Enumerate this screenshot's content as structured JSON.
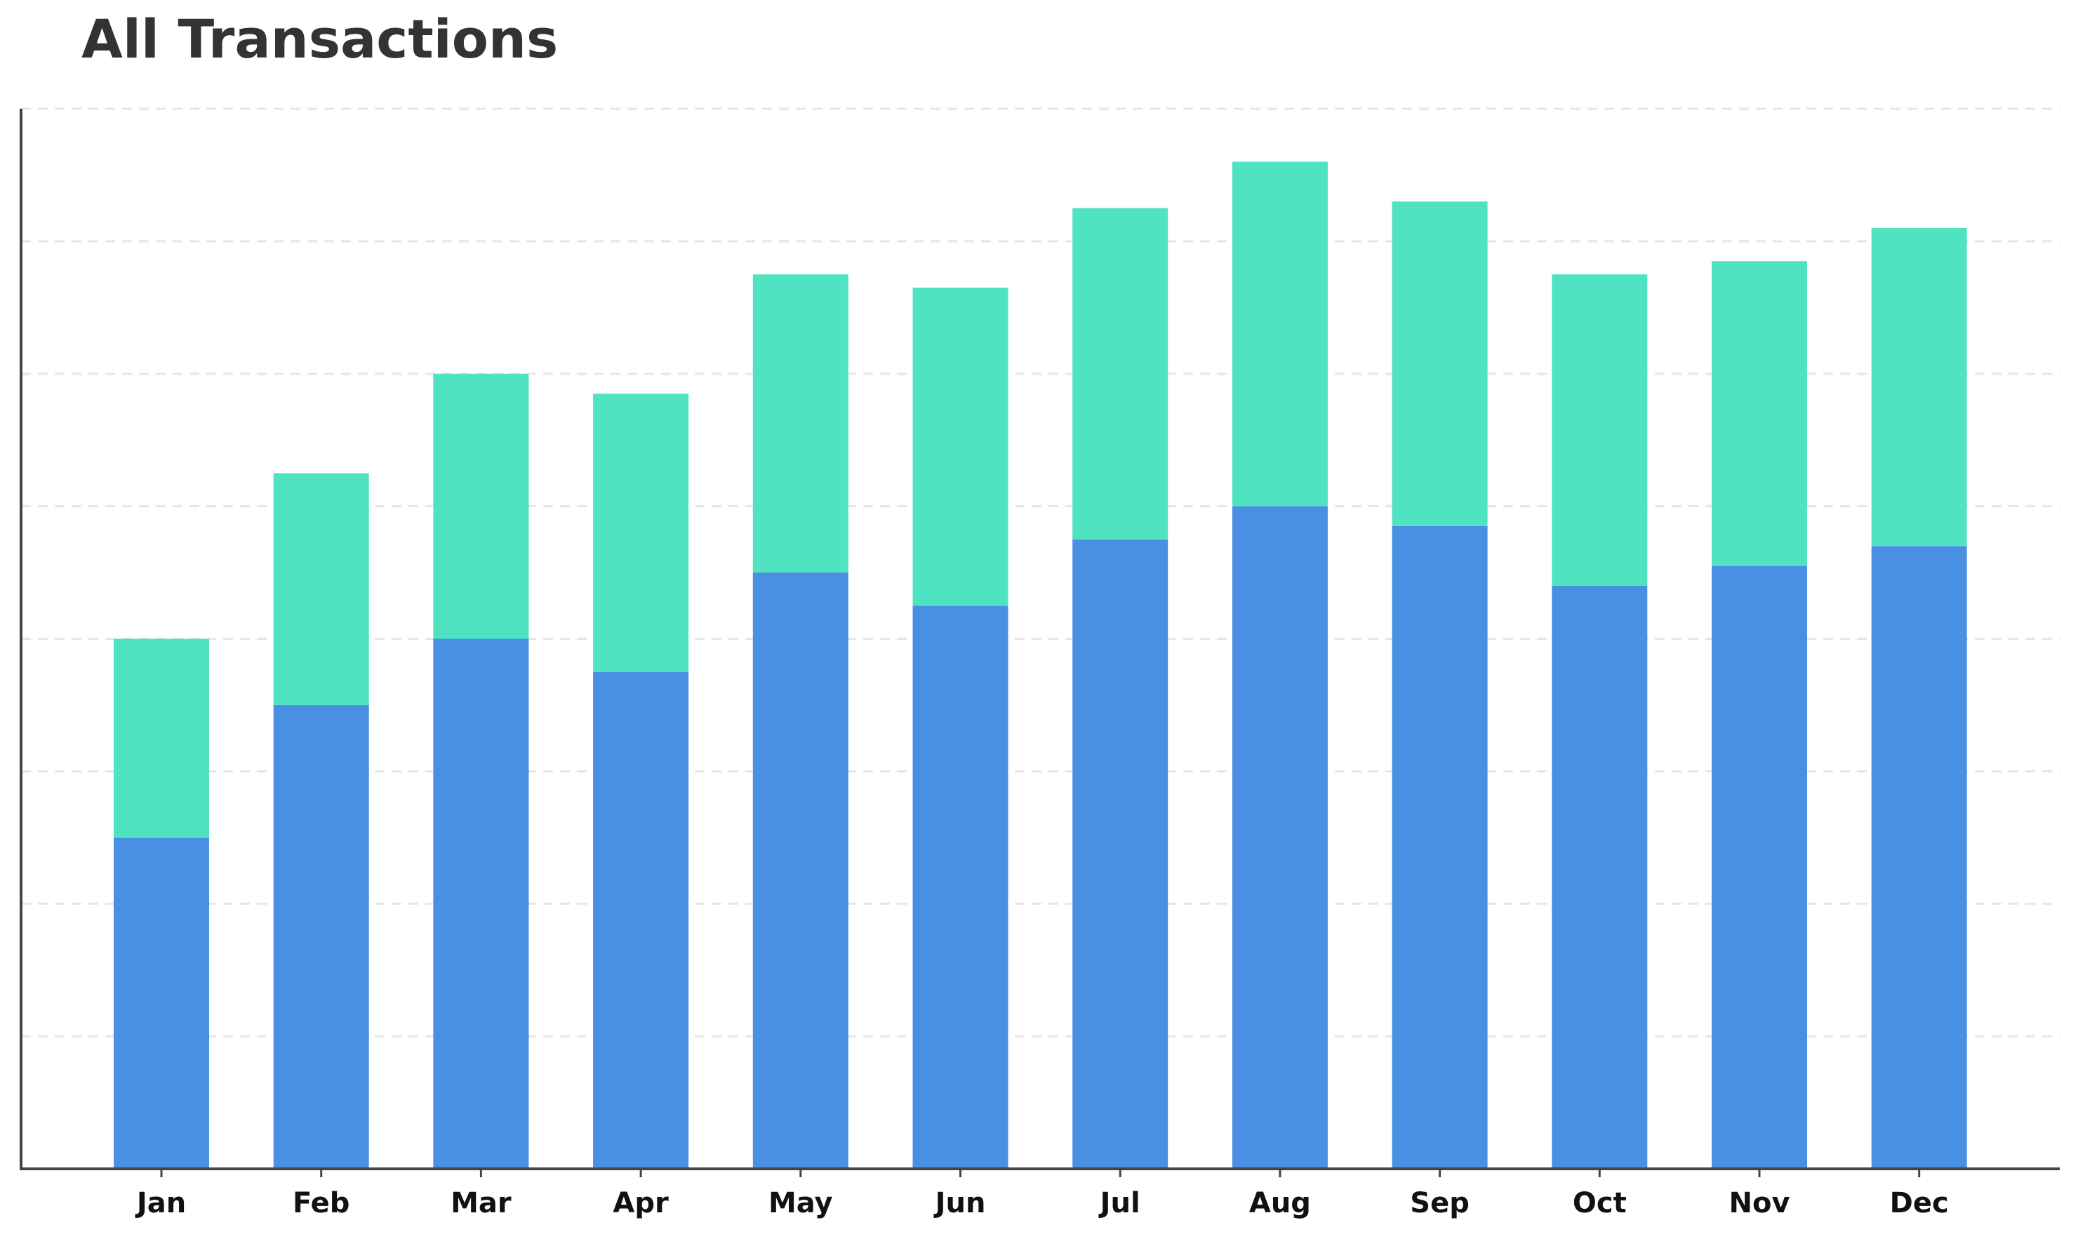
{
  "chart_data": {
    "type": "bar",
    "stacked": true,
    "title": "All Transactions",
    "xlabel": "",
    "ylabel": "",
    "categories": [
      "Jan",
      "Feb",
      "Mar",
      "Apr",
      "May",
      "Jun",
      "Jul",
      "Aug",
      "Sep",
      "Oct",
      "Nov",
      "Dec"
    ],
    "series": [
      {
        "color": "#4a90e2",
        "values": [
          2.5,
          3.5,
          4.0,
          3.75,
          4.5,
          4.25,
          4.75,
          5.0,
          4.85,
          4.4,
          4.55,
          4.7
        ]
      },
      {
        "color": "#50e3c2",
        "values": [
          1.5,
          1.75,
          2.0,
          2.1,
          2.25,
          2.4,
          2.5,
          2.6,
          2.45,
          2.35,
          2.3,
          2.4
        ]
      }
    ],
    "ylim": [
      0,
      8
    ],
    "yticks_labeled": false,
    "grid": {
      "axis": "y",
      "style": "dashed",
      "color": "#e6e6e6"
    },
    "legend": "none",
    "axis_color": "#444444"
  }
}
